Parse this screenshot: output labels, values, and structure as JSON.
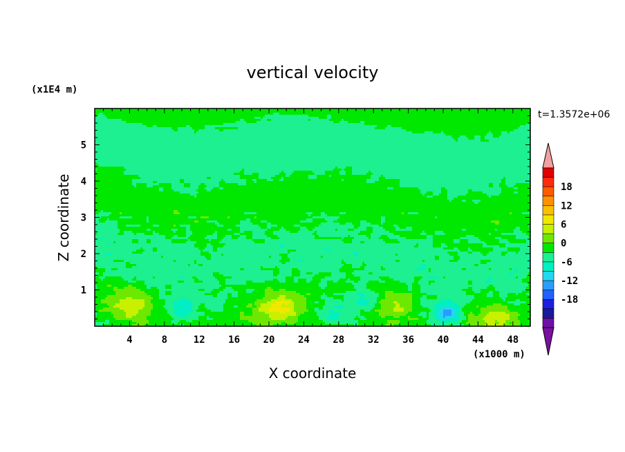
{
  "chart_data": {
    "type": "heatmap",
    "title": "vertical velocity",
    "xlabel": "X coordinate",
    "ylabel": "Z coordinate",
    "x_unit": "(x1000 m)",
    "y_unit": "(x1E4 m)",
    "time_label": "t=1.3572e+06",
    "xlim": [
      0,
      50
    ],
    "ylim": [
      0,
      6
    ],
    "x_ticks": [
      4,
      8,
      12,
      16,
      20,
      24,
      28,
      32,
      36,
      40,
      44,
      48
    ],
    "y_ticks": [
      1,
      2,
      3,
      4,
      5
    ],
    "colorbar": {
      "tick_values": [
        18,
        12,
        6,
        0,
        -6,
        -12,
        -18
      ],
      "level_colors": [
        "#6f10a8",
        "#1a1a9a",
        "#1e1ee0",
        "#2060ff",
        "#2a9cff",
        "#20d8f0",
        "#00f0c0",
        "#1cf090",
        "#00e800",
        "#6ee800",
        "#c8f000",
        "#f0e800",
        "#f8c000",
        "#ff9000",
        "#ff5a00",
        "#ff2a10",
        "#e00000"
      ],
      "under_color": "#7a10a0",
      "over_color": "#f4a0a0"
    },
    "features": [
      {
        "kind": "updraft",
        "x": 4,
        "z": 0.6,
        "peak": 7
      },
      {
        "kind": "updraft",
        "x": 21,
        "z": 0.5,
        "peak": 9
      },
      {
        "kind": "updraft",
        "x": 34.5,
        "z": 0.65,
        "peak": 5
      },
      {
        "kind": "updraft",
        "x": 46,
        "z": 0.25,
        "peak": 6
      },
      {
        "kind": "downdraft",
        "x": 10,
        "z": 0.5,
        "peak": -6
      },
      {
        "kind": "downdraft",
        "x": 27.5,
        "z": 0.4,
        "peak": -5
      },
      {
        "kind": "downdraft",
        "x": 31,
        "z": 0.7,
        "peak": -5
      },
      {
        "kind": "downdraft",
        "x": 40.5,
        "z": 0.35,
        "peak": -10
      }
    ]
  }
}
